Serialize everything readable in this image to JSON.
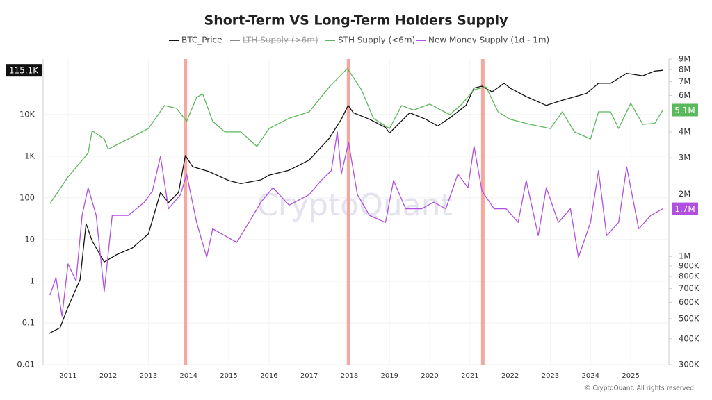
{
  "chart_data": {
    "type": "line",
    "title": "Short-Term VS Long-Term Holders Supply",
    "watermark": "CryptoQuant",
    "credit": "© CryptoQuant. All rights reserved",
    "xlim": [
      2010.38,
      2025.95
    ],
    "xticks": [
      2011,
      2012,
      2013,
      2014,
      2015,
      2016,
      2017,
      2018,
      2019,
      2020,
      2021,
      2022,
      2023,
      2024,
      2025
    ],
    "ylim": [
      0.01,
      214000
    ],
    "log_y": true,
    "yticks": [
      0.01,
      0.1,
      1,
      10,
      100,
      {
        "value": 1000,
        "label": "1K"
      },
      {
        "value": 10000,
        "label": "10K"
      }
    ],
    "y2lim": [
      300000,
      9000000
    ],
    "log_y2": true,
    "y2ticks": [
      {
        "value": 300000,
        "label": "300K"
      },
      {
        "value": 400000,
        "label": "400K"
      },
      {
        "value": 500000,
        "label": "500K"
      },
      {
        "value": 600000,
        "label": "600K"
      },
      {
        "value": 700000,
        "label": "700K"
      },
      {
        "value": 800000,
        "label": "800K"
      },
      {
        "value": 900000,
        "label": "900K"
      },
      {
        "value": 1000000,
        "label": "1M"
      },
      {
        "value": 2000000,
        "label": "2M"
      },
      {
        "value": 3000000,
        "label": "3M"
      },
      {
        "value": 4000000,
        "label": "4M"
      },
      {
        "value": 6000000,
        "label": "6M"
      },
      {
        "value": 7000000,
        "label": "7M"
      },
      {
        "value": 8000000,
        "label": "8M"
      },
      {
        "value": 9000000,
        "label": "9M"
      }
    ],
    "grid": true,
    "highlights": {
      "color": "#f2a096",
      "x": [
        2013.92,
        2017.98,
        2021.32
      ]
    },
    "series": [
      {
        "name": "BTC_Price",
        "color": "#111111",
        "axis": "y",
        "last_label": "115.1K",
        "x": [
          2010.53,
          2010.8,
          2011.0,
          2011.3,
          2011.45,
          2011.6,
          2011.9,
          2012.2,
          2012.6,
          2013.0,
          2013.3,
          2013.5,
          2013.75,
          2013.92,
          2014.1,
          2014.5,
          2015.0,
          2015.3,
          2015.8,
          2016.0,
          2016.5,
          2017.0,
          2017.5,
          2017.8,
          2017.97,
          2018.1,
          2018.5,
          2018.9,
          2019.0,
          2019.5,
          2019.9,
          2020.2,
          2020.5,
          2020.9,
          2021.1,
          2021.3,
          2021.55,
          2021.85,
          2022.0,
          2022.4,
          2022.9,
          2023.3,
          2023.9,
          2024.2,
          2024.5,
          2024.9,
          2025.3,
          2025.6,
          2025.8
        ],
        "values": [
          0.056,
          0.076,
          0.24,
          1.1,
          24,
          9.3,
          2.9,
          4.3,
          6.3,
          13.6,
          135,
          77,
          135,
          1040,
          560,
          430,
          260,
          220,
          270,
          350,
          460,
          810,
          2700,
          7700,
          16500,
          11000,
          7700,
          4900,
          3600,
          11000,
          7700,
          5300,
          8300,
          16500,
          43000,
          48000,
          35000,
          56000,
          43000,
          27000,
          16500,
          22000,
          32000,
          56000,
          56000,
          97000,
          85000,
          110000,
          115100
        ]
      },
      {
        "name": "LTH Supply (>6m)",
        "color": "#888888",
        "axis": "y2",
        "hidden": true,
        "x": [],
        "values": []
      },
      {
        "name": "STH Supply (<6m)",
        "color": "#5cb85c",
        "axis": "y2",
        "last_label": "5.1M",
        "x": [
          2010.55,
          2011.0,
          2011.5,
          2011.6,
          2011.9,
          2012.0,
          2012.5,
          2013.0,
          2013.4,
          2013.7,
          2013.95,
          2014.2,
          2014.35,
          2014.6,
          2014.9,
          2015.3,
          2015.7,
          2016.0,
          2016.5,
          2017.0,
          2017.5,
          2017.95,
          2018.3,
          2018.6,
          2019.0,
          2019.3,
          2019.6,
          2020.0,
          2020.5,
          2020.8,
          2021.1,
          2021.4,
          2021.7,
          2022.0,
          2022.5,
          2023.0,
          2023.3,
          2023.6,
          2024.0,
          2024.2,
          2024.5,
          2024.7,
          2025.0,
          2025.3,
          2025.6,
          2025.8
        ],
        "values": [
          1800000,
          2420000,
          3160000,
          4050000,
          3700000,
          3300000,
          3700000,
          4150000,
          5360000,
          5200000,
          4500000,
          5880000,
          6100000,
          4500000,
          4000000,
          4000000,
          3400000,
          4150000,
          4650000,
          5000000,
          6600000,
          8100000,
          6400000,
          4650000,
          4150000,
          5360000,
          5100000,
          5450000,
          4850000,
          5450000,
          6400000,
          6600000,
          5000000,
          4600000,
          4350000,
          4150000,
          5000000,
          4000000,
          3700000,
          5000000,
          5000000,
          4150000,
          5500000,
          4350000,
          4400000,
          5100000
        ]
      },
      {
        "name": "New Money Supply (1d - 1m)",
        "color": "#b04fe0",
        "axis": "y2",
        "last_label": "1.7M",
        "x": [
          2010.55,
          2010.7,
          2010.85,
          2011.0,
          2011.2,
          2011.35,
          2011.5,
          2011.7,
          2011.9,
          2012.1,
          2012.5,
          2012.9,
          2013.1,
          2013.3,
          2013.5,
          2013.8,
          2013.95,
          2014.2,
          2014.45,
          2014.6,
          2014.9,
          2015.2,
          2015.5,
          2015.8,
          2016.1,
          2016.5,
          2017.0,
          2017.3,
          2017.55,
          2017.7,
          2017.8,
          2017.98,
          2018.2,
          2018.5,
          2018.9,
          2019.1,
          2019.4,
          2019.8,
          2020.1,
          2020.4,
          2020.7,
          2020.95,
          2021.1,
          2021.3,
          2021.6,
          2021.9,
          2022.2,
          2022.4,
          2022.7,
          2022.9,
          2023.2,
          2023.5,
          2023.7,
          2024.0,
          2024.2,
          2024.4,
          2024.7,
          2024.9,
          2025.2,
          2025.5,
          2025.8
        ],
        "values": [
          650000,
          790000,
          515000,
          920000,
          760000,
          1580000,
          2150000,
          1580000,
          675000,
          1580000,
          1580000,
          1830000,
          2070000,
          3050000,
          1700000,
          1990000,
          2500000,
          1460000,
          990000,
          1360000,
          1260000,
          1170000,
          1460000,
          1830000,
          2150000,
          1770000,
          1990000,
          2330000,
          2600000,
          4000000,
          2500000,
          3560000,
          1990000,
          1580000,
          1460000,
          2330000,
          1700000,
          1700000,
          1830000,
          1700000,
          2500000,
          2150000,
          3420000,
          2070000,
          1700000,
          1700000,
          1460000,
          2330000,
          1260000,
          2150000,
          1460000,
          1700000,
          990000,
          1460000,
          2600000,
          1260000,
          1460000,
          2710000,
          1360000,
          1580000,
          1700000
        ]
      }
    ]
  }
}
